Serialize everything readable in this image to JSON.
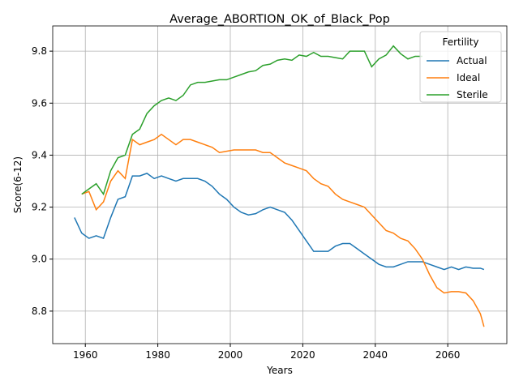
{
  "chart_data": {
    "type": "line",
    "title": "Average_ABORTION_OK_of_Black_Pop",
    "xlabel": "Years",
    "ylabel": "Score(6-12)",
    "x": [
      1957,
      1959,
      1961,
      1963,
      1965,
      1967,
      1969,
      1971,
      1973,
      1975,
      1977,
      1979,
      1981,
      1983,
      1985,
      1987,
      1989,
      1991,
      1993,
      1995,
      1997,
      1999,
      2001,
      2003,
      2005,
      2007,
      2009,
      2011,
      2013,
      2015,
      2017,
      2019,
      2021,
      2023,
      2025,
      2027,
      2029,
      2031,
      2033,
      2035,
      2037,
      2039,
      2041,
      2043,
      2045,
      2047,
      2049,
      2051,
      2053,
      2055,
      2057,
      2059,
      2061,
      2063,
      2065,
      2067,
      2069,
      2070
    ],
    "series": [
      {
        "name": "Actual",
        "color": "#1f77b4",
        "values": [
          9.16,
          9.1,
          9.08,
          9.09,
          9.08,
          9.16,
          9.23,
          9.24,
          9.32,
          9.32,
          9.33,
          9.31,
          9.32,
          9.31,
          9.3,
          9.31,
          9.31,
          9.31,
          9.3,
          9.28,
          9.25,
          9.23,
          9.2,
          9.18,
          9.17,
          9.175,
          9.19,
          9.2,
          9.19,
          9.18,
          9.15,
          9.11,
          9.07,
          9.03,
          9.03,
          9.03,
          9.05,
          9.06,
          9.06,
          9.04,
          9.02,
          9.0,
          8.98,
          8.97,
          8.97,
          8.98,
          8.99,
          8.99,
          8.99,
          8.98,
          8.97,
          8.96,
          8.97,
          8.96,
          8.97,
          8.965,
          8.965,
          8.96
        ]
      },
      {
        "name": "Ideal",
        "color": "#ff7f0e",
        "values": [
          null,
          9.25,
          9.26,
          9.19,
          9.22,
          9.3,
          9.34,
          9.31,
          9.46,
          9.44,
          9.45,
          9.46,
          9.48,
          9.46,
          9.44,
          9.46,
          9.46,
          9.45,
          9.44,
          9.43,
          9.41,
          9.415,
          9.42,
          9.42,
          9.42,
          9.42,
          9.41,
          9.41,
          9.39,
          9.37,
          9.36,
          9.35,
          9.34,
          9.31,
          9.29,
          9.28,
          9.25,
          9.23,
          9.22,
          9.21,
          9.2,
          9.17,
          9.14,
          9.11,
          9.1,
          9.08,
          9.07,
          9.04,
          9.0,
          8.94,
          8.89,
          8.87,
          8.875,
          8.875,
          8.87,
          8.84,
          8.79,
          8.74
        ]
      },
      {
        "name": "Sterile",
        "color": "#2ca02c",
        "values": [
          null,
          9.25,
          9.27,
          9.29,
          9.25,
          9.34,
          9.39,
          9.4,
          9.48,
          9.5,
          9.56,
          9.59,
          9.61,
          9.62,
          9.61,
          9.63,
          9.67,
          9.68,
          9.68,
          9.685,
          9.69,
          9.69,
          9.7,
          9.71,
          9.72,
          9.725,
          9.745,
          9.75,
          9.765,
          9.77,
          9.765,
          9.785,
          9.78,
          9.795,
          9.78,
          9.78,
          9.775,
          9.77,
          9.8,
          9.8,
          9.8,
          9.74,
          9.77,
          9.785,
          9.82,
          9.79,
          9.77,
          9.78,
          9.78,
          null,
          null,
          null,
          null,
          null,
          null,
          null,
          null,
          null
        ]
      }
    ],
    "xlim": [
      1951,
      2076.3
    ],
    "ylim": [
      8.675,
      9.897
    ],
    "xticks": [
      1960,
      1980,
      2000,
      2020,
      2040,
      2060
    ],
    "yticks": [
      8.8,
      {
        "value": 9,
        "label": "9.0"
      },
      9.2,
      9.4,
      9.6,
      9.8
    ],
    "grid": true,
    "legend_title": "Fertility",
    "legend_loc": "upper right"
  }
}
